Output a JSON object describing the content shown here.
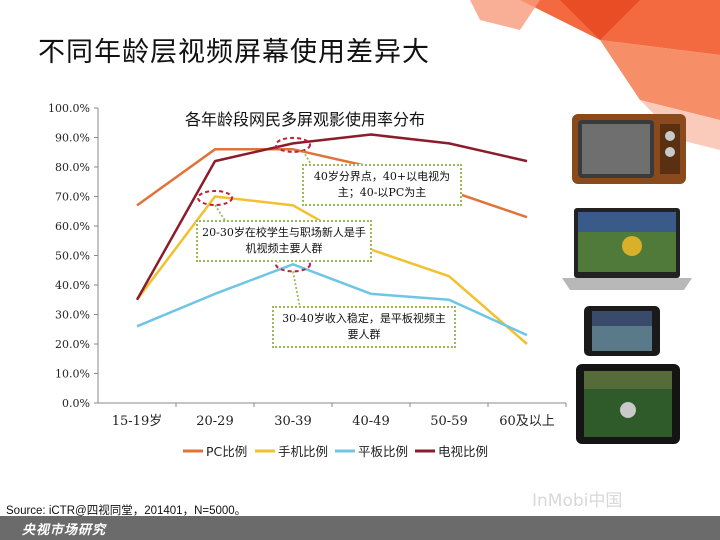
{
  "slide_title": "不同年龄层视频屏幕使用差异大",
  "chart_data": {
    "type": "line",
    "title": "各年龄段网民多屏观影使用率分布",
    "categories": [
      "15-19岁",
      "20-29",
      "30-39",
      "40-49",
      "50-59",
      "60及以上"
    ],
    "y_ticks": [
      "0.0%",
      "10.0%",
      "20.0%",
      "30.0%",
      "40.0%",
      "50.0%",
      "60.0%",
      "70.0%",
      "80.0%",
      "90.0%",
      "100.0%"
    ],
    "ylim": [
      0,
      100
    ],
    "grid": false,
    "legend_position": "bottom",
    "series": [
      {
        "name": "PC比例",
        "color": "#e0733a",
        "values": [
          67,
          86,
          86,
          80,
          72,
          63
        ]
      },
      {
        "name": "手机比例",
        "color": "#f2c12e",
        "values": [
          35,
          70,
          67,
          52,
          43,
          20
        ]
      },
      {
        "name": "平板比例",
        "color": "#6ec6e4",
        "values": [
          26,
          37,
          47,
          37,
          35,
          23
        ]
      },
      {
        "name": "电视比例",
        "color": "#8b1c2c",
        "values": [
          35,
          82,
          88,
          91,
          88,
          82
        ]
      }
    ],
    "annotations": [
      {
        "text": "40岁分界点，40+以电视为主；40-以PC为主"
      },
      {
        "text": "20-30岁在校学生与职场新人是手机视频主要人群"
      },
      {
        "text": "30-40岁收入稳定，是平板视频主要人群"
      }
    ]
  },
  "source": "Source: iCTR@四视同堂，201401，N=5000。",
  "footer": "央视市场研究",
  "watermark": "InMobi中国",
  "colors": {
    "annotation_border": "#9bbb59",
    "highlight_circle": "#c0203a",
    "footer_bg": "#6b6b6b"
  }
}
